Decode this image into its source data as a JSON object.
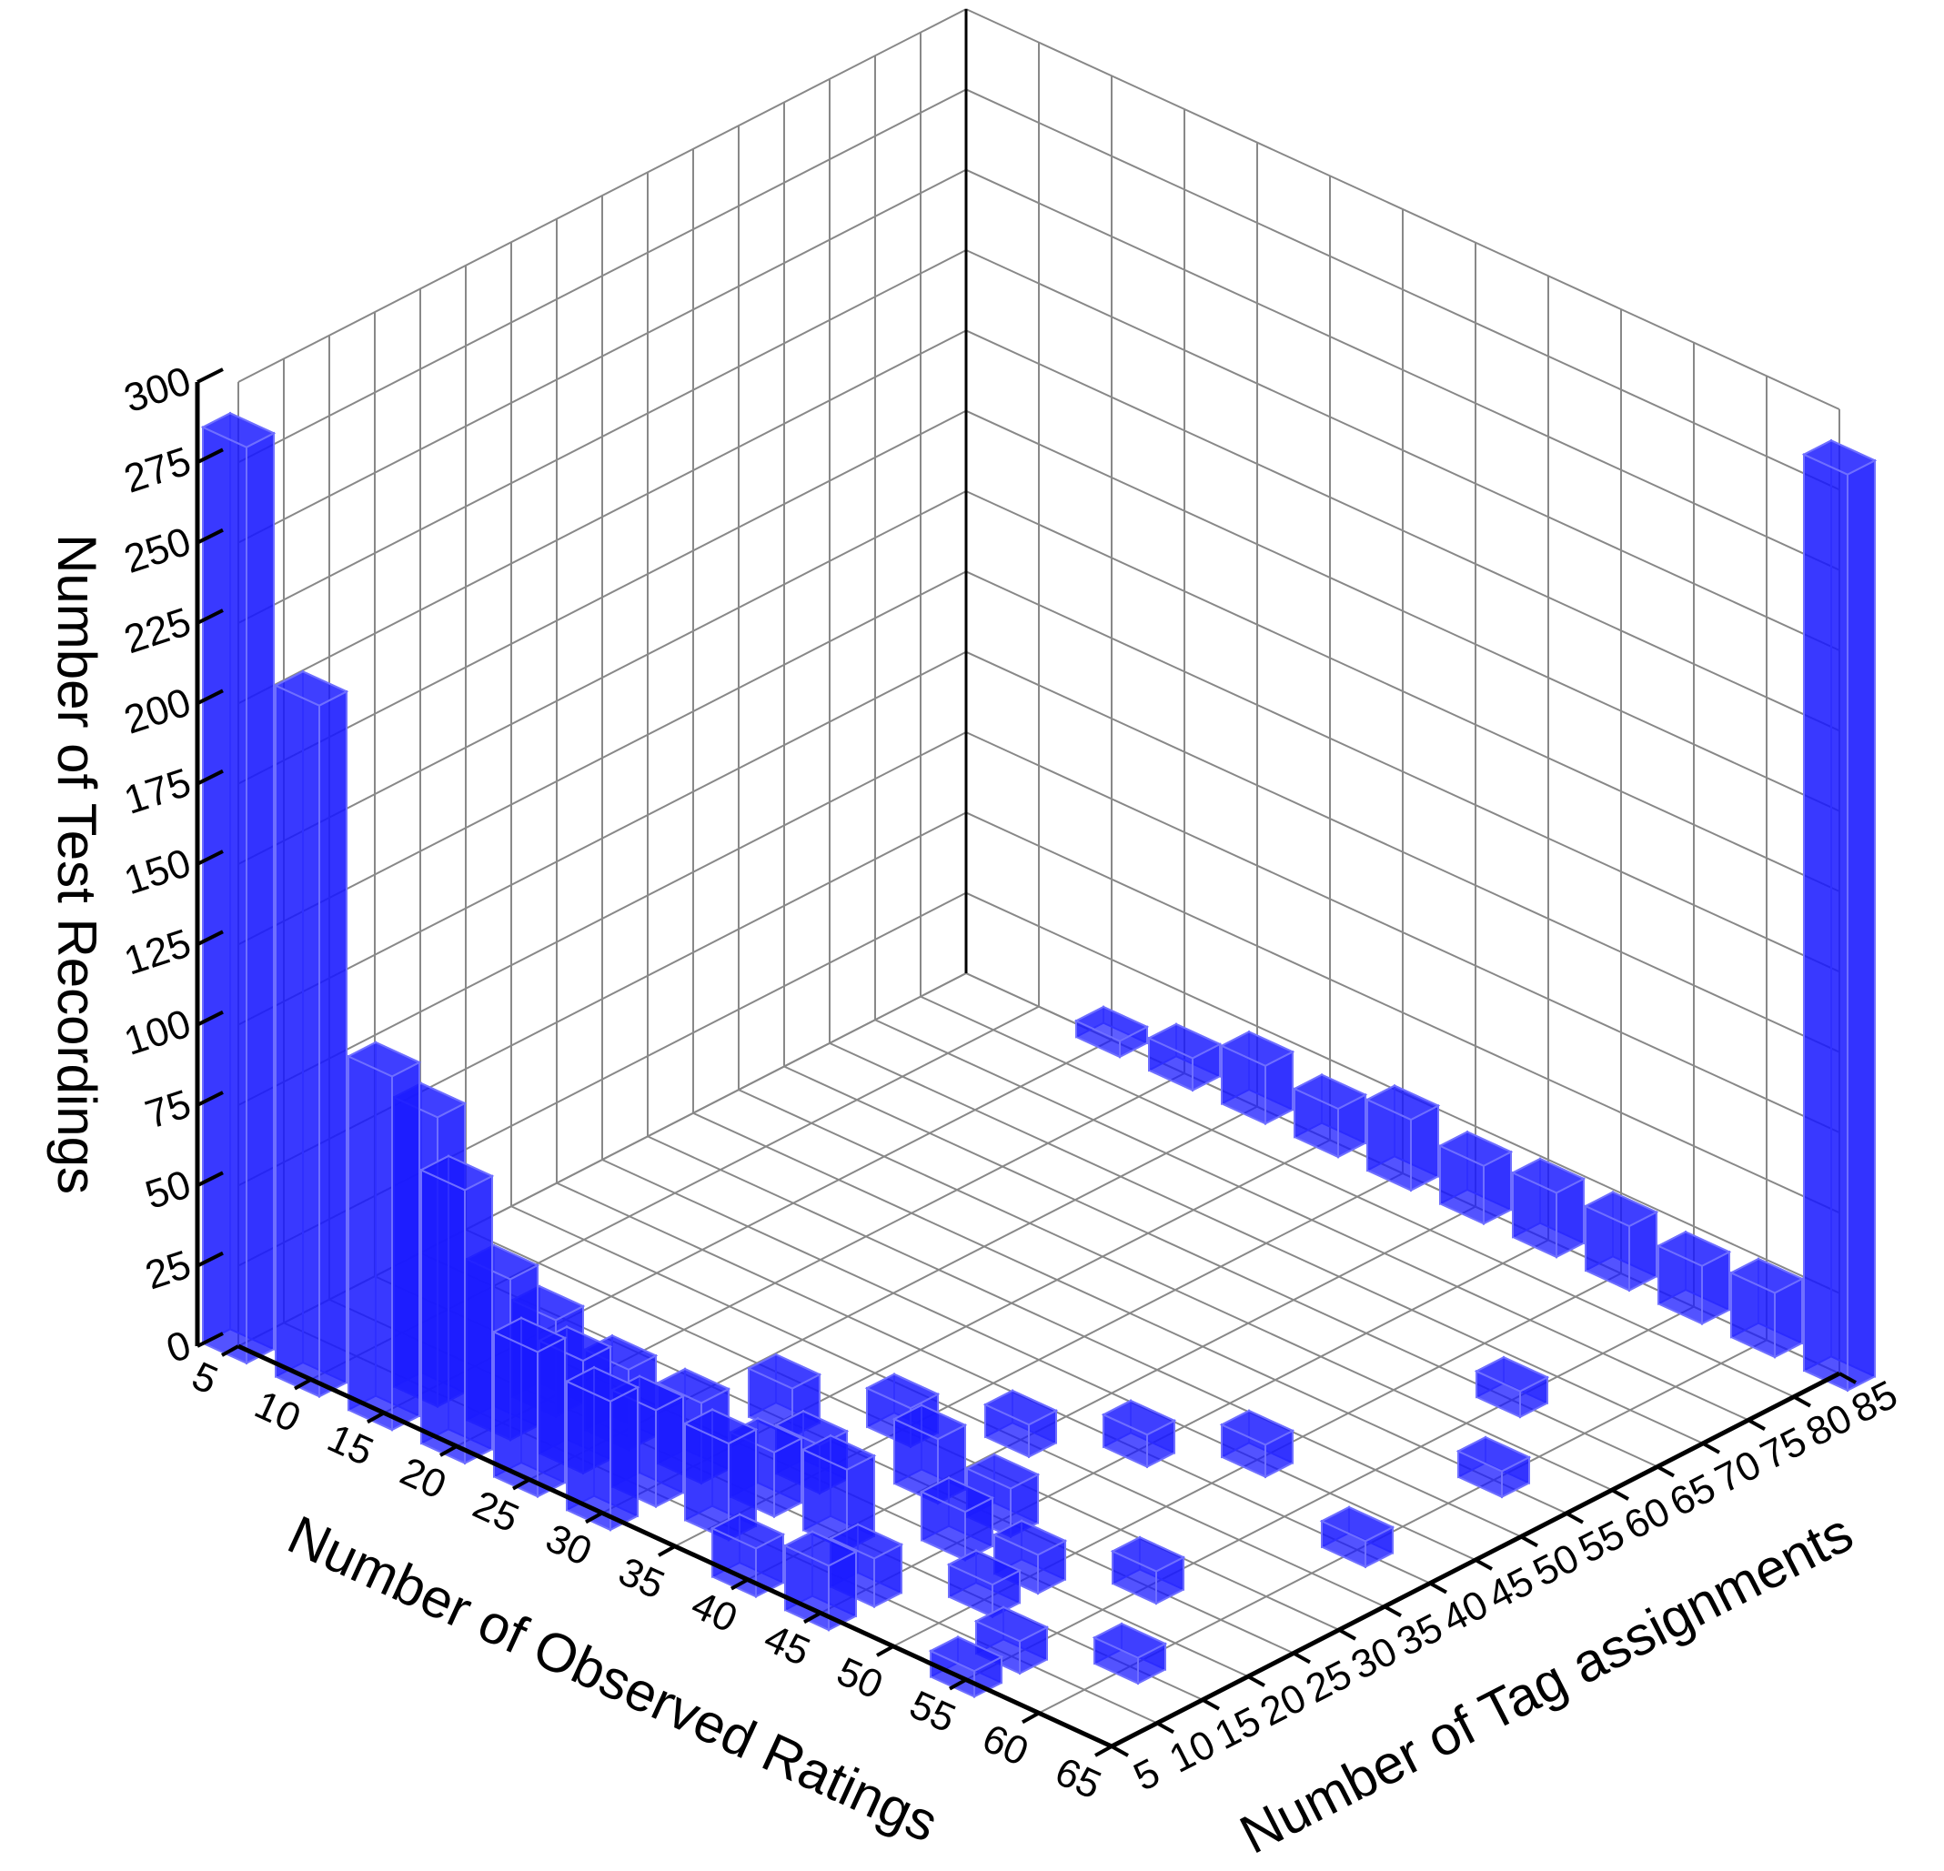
{
  "chart_data": {
    "type": "bar3d",
    "x_label": "Number of Observed Ratings",
    "y_label": "Number of Tag assignments",
    "z_label": "Number of Test Recordings",
    "x": [
      5,
      10,
      15,
      15,
      20,
      20,
      25,
      25,
      30,
      30,
      35,
      30,
      35,
      40,
      25,
      20,
      45,
      40,
      45,
      50,
      55,
      35,
      30,
      35,
      40,
      45,
      50,
      45,
      50,
      55,
      60,
      40,
      45,
      55,
      60,
      60,
      55,
      15,
      20,
      25,
      30,
      35,
      40,
      45,
      50,
      55,
      60,
      65
    ],
    "y": [
      5,
      5,
      5,
      10,
      5,
      10,
      5,
      10,
      5,
      10,
      10,
      15,
      15,
      15,
      15,
      15,
      20,
      25,
      25,
      20,
      25,
      20,
      25,
      30,
      35,
      40,
      45,
      10,
      15,
      10,
      15,
      5,
      5,
      5,
      40,
      55,
      65,
      85,
      85,
      85,
      85,
      85,
      85,
      85,
      85,
      85,
      85,
      85
    ],
    "values": [
      285,
      215,
      110,
      90,
      85,
      50,
      45,
      35,
      40,
      30,
      30,
      25,
      20,
      25,
      25,
      30,
      15,
      20,
      15,
      12,
      10,
      15,
      15,
      12,
      10,
      10,
      10,
      15,
      10,
      10,
      8,
      15,
      20,
      8,
      8,
      8,
      8,
      5,
      10,
      18,
      15,
      22,
      18,
      20,
      20,
      18,
      20,
      285
    ],
    "color": "#1a1aff",
    "xlim": [
      5,
      65
    ],
    "ylim": [
      5,
      85
    ],
    "zlim": [
      0,
      300
    ],
    "xticks": [
      5,
      10,
      15,
      20,
      25,
      30,
      35,
      40,
      45,
      50,
      55,
      60,
      65
    ],
    "yticks": [
      5,
      10,
      15,
      20,
      25,
      30,
      35,
      40,
      45,
      50,
      55,
      60,
      65,
      70,
      75,
      80,
      85
    ],
    "zticks": [
      0,
      25,
      50,
      75,
      100,
      125,
      150,
      175,
      200,
      225,
      250,
      275,
      300
    ],
    "grid": true
  }
}
